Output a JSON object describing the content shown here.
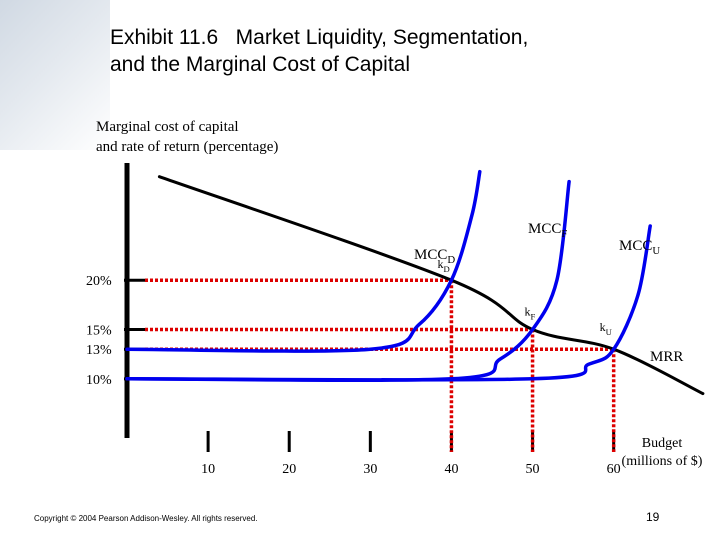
{
  "slide": {
    "title_line1": "Exhibit 11.6   Market Liquidity, Segmentation,",
    "title_line2": "and the Marginal Cost of Capital",
    "copyright": "Copyright © 2004 Pearson Addison-Wesley. All rights reserved.",
    "page_number": "19"
  },
  "chart_data": {
    "type": "line",
    "ylabel_line1": "Marginal cost of capital",
    "ylabel_line2": "and rate of return (percentage)",
    "xlabel_line1": "Budget",
    "xlabel_line2": "(millions of $)",
    "x_ticks": [
      10,
      20,
      30,
      40,
      50,
      60
    ],
    "y_ticks": [
      {
        "label": "20%",
        "value": 20
      },
      {
        "label": "15%",
        "value": 15
      },
      {
        "label": "13%",
        "value": 13
      },
      {
        "label": "10%",
        "value": 10
      }
    ],
    "xlim": [
      0,
      72
    ],
    "ylim": [
      4,
      33
    ],
    "series": [
      {
        "name": "MRR",
        "color": "#000000",
        "values": [
          [
            4,
            30.5
          ],
          [
            40,
            20
          ],
          [
            50,
            15
          ],
          [
            60,
            13
          ],
          [
            71,
            8.5
          ]
        ]
      },
      {
        "name": "MCC",
        "color": "#0000ee",
        "subscript": "D",
        "values": [
          [
            0,
            13
          ],
          [
            30,
            13
          ],
          [
            36,
            15.5
          ],
          [
            40,
            20
          ],
          [
            42.5,
            26.5
          ],
          [
            43.5,
            31
          ]
        ]
      },
      {
        "name": "MCC",
        "color": "#0000ee",
        "subscript": "F",
        "values": [
          [
            0,
            10
          ],
          [
            40,
            10
          ],
          [
            46,
            12
          ],
          [
            50,
            15
          ],
          [
            53,
            20
          ],
          [
            54.5,
            30
          ]
        ]
      },
      {
        "name": "MCC",
        "color": "#0000ee",
        "subscript": "U",
        "values": [
          [
            0,
            10
          ],
          [
            50,
            10
          ],
          [
            57,
            11.5
          ],
          [
            60,
            13
          ],
          [
            63,
            18.5
          ],
          [
            64.5,
            25.5
          ]
        ]
      }
    ],
    "points": [
      {
        "label": "k",
        "subscript": "D",
        "x": 40,
        "y": 20
      },
      {
        "label": "k",
        "subscript": "F",
        "x": 50,
        "y": 15
      },
      {
        "label": "k",
        "subscript": "U",
        "x": 60,
        "y": 13
      }
    ],
    "reference_color": "#dd0000",
    "grid": false
  }
}
